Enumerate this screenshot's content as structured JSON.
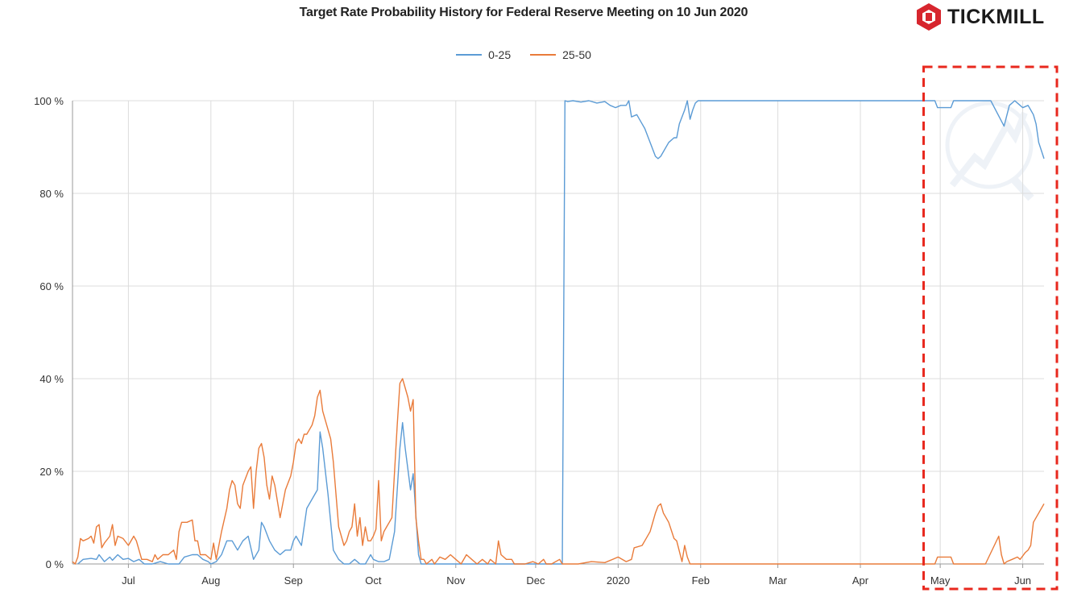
{
  "header": {
    "title": "Target Rate Probability History for Federal Reserve Meeting on 10 Jun 2020"
  },
  "brand": {
    "name": "TICKMILL",
    "logo_icon": "tickmill-hexagon-icon",
    "color": "#d7262e"
  },
  "chart_data": {
    "type": "line",
    "title": "Target Rate Probability History for Federal Reserve Meeting on 10 Jun 2020",
    "xlabel": "",
    "ylabel": "",
    "ylim": [
      0,
      100
    ],
    "xlim": [
      0,
      365
    ],
    "x_unit": "days from 2019-06-10 to 2020-06-10",
    "y_ticks": [
      0,
      20,
      40,
      60,
      80,
      100
    ],
    "y_tick_labels": [
      "0 %",
      "20 %",
      "40 %",
      "60 %",
      "80 %",
      "100 %"
    ],
    "x_ticks": [
      21,
      52,
      83,
      113,
      144,
      174,
      205,
      236,
      265,
      296,
      326,
      357
    ],
    "x_tick_labels": [
      "Jul",
      "Aug",
      "Sep",
      "Oct",
      "Nov",
      "Dec",
      "2020",
      "Feb",
      "Mar",
      "Apr",
      "May",
      "Jun"
    ],
    "grid": true,
    "legend": "top-center",
    "highlight_box": {
      "x_from": 324,
      "x_to": 365,
      "color": "#e8281e",
      "style": "dashed"
    },
    "series": [
      {
        "name": "0-25",
        "color": "#5b9bd5",
        "points": [
          [
            2,
            0
          ],
          [
            4,
            1
          ],
          [
            7,
            1.2
          ],
          [
            9,
            1
          ],
          [
            10,
            2
          ],
          [
            12,
            0.5
          ],
          [
            14,
            1.5
          ],
          [
            15,
            0.8
          ],
          [
            17,
            2
          ],
          [
            19,
            1
          ],
          [
            21,
            1.2
          ],
          [
            23,
            0.5
          ],
          [
            25,
            1
          ],
          [
            27,
            0
          ],
          [
            30,
            0
          ],
          [
            33,
            0.5
          ],
          [
            36,
            0
          ],
          [
            38,
            0
          ],
          [
            40,
            0
          ],
          [
            42,
            1.5
          ],
          [
            45,
            2
          ],
          [
            47,
            2
          ],
          [
            49,
            1
          ],
          [
            51,
            0.5
          ],
          [
            52,
            0
          ],
          [
            54,
            0.5
          ],
          [
            56,
            2
          ],
          [
            58,
            5
          ],
          [
            60,
            5
          ],
          [
            62,
            3
          ],
          [
            64,
            5
          ],
          [
            66,
            6
          ],
          [
            68,
            1
          ],
          [
            70,
            3
          ],
          [
            71,
            9
          ],
          [
            72,
            8
          ],
          [
            74,
            5
          ],
          [
            76,
            3
          ],
          [
            78,
            2
          ],
          [
            80,
            3
          ],
          [
            82,
            3
          ],
          [
            83,
            5
          ],
          [
            84,
            6
          ],
          [
            86,
            4
          ],
          [
            88,
            12
          ],
          [
            90,
            14
          ],
          [
            92,
            16
          ],
          [
            93,
            28.5
          ],
          [
            94,
            25
          ],
          [
            96,
            15
          ],
          [
            98,
            3
          ],
          [
            100,
            1
          ],
          [
            102,
            0
          ],
          [
            104,
            0
          ],
          [
            106,
            1
          ],
          [
            108,
            0
          ],
          [
            110,
            0
          ],
          [
            111,
            1
          ],
          [
            112,
            2
          ],
          [
            113,
            1
          ],
          [
            115,
            0.5
          ],
          [
            117,
            0.5
          ],
          [
            119,
            1
          ],
          [
            121,
            7
          ],
          [
            123,
            25
          ],
          [
            124,
            30.5
          ],
          [
            125,
            25
          ],
          [
            127,
            16
          ],
          [
            128,
            19.5
          ],
          [
            130,
            2
          ],
          [
            131,
            0
          ],
          [
            133,
            0
          ],
          [
            140,
            0
          ],
          [
            150,
            0
          ],
          [
            160,
            0
          ],
          [
            170,
            0
          ],
          [
            180,
            0
          ],
          [
            184,
            0
          ],
          [
            185,
            100
          ],
          [
            186,
            99.8
          ],
          [
            188,
            100
          ],
          [
            191,
            99.7
          ],
          [
            194,
            100
          ],
          [
            197,
            99.5
          ],
          [
            200,
            99.8
          ],
          [
            202,
            99
          ],
          [
            204,
            98.5
          ],
          [
            206,
            99
          ],
          [
            208,
            99
          ],
          [
            209,
            100
          ],
          [
            210,
            96.5
          ],
          [
            212,
            97
          ],
          [
            214,
            95
          ],
          [
            215,
            94
          ],
          [
            217,
            91
          ],
          [
            219,
            88
          ],
          [
            220,
            87.5
          ],
          [
            221,
            88
          ],
          [
            224,
            91
          ],
          [
            226,
            92
          ],
          [
            227,
            92
          ],
          [
            228,
            95
          ],
          [
            230,
            98
          ],
          [
            231,
            100
          ],
          [
            232,
            96
          ],
          [
            233,
            98
          ],
          [
            234,
            99.5
          ],
          [
            235,
            100
          ],
          [
            324,
            100
          ],
          [
            325,
            98.5
          ],
          [
            328,
            98.5
          ],
          [
            330,
            98.5
          ],
          [
            331,
            100
          ],
          [
            345,
            100
          ],
          [
            350,
            94.5
          ],
          [
            352,
            99
          ],
          [
            354,
            100
          ],
          [
            356,
            99
          ],
          [
            357,
            98.5
          ],
          [
            359,
            99
          ],
          [
            360,
            98
          ],
          [
            361,
            97
          ],
          [
            362,
            95
          ],
          [
            363,
            91
          ],
          [
            365,
            87.5
          ]
        ]
      },
      {
        "name": "25-50",
        "color": "#e97b3a",
        "points": [
          [
            0,
            0.5
          ],
          [
            1,
            0
          ],
          [
            2,
            1.5
          ],
          [
            3,
            5.5
          ],
          [
            4,
            5
          ],
          [
            6,
            5.5
          ],
          [
            7,
            6
          ],
          [
            8,
            4.5
          ],
          [
            9,
            8
          ],
          [
            10,
            8.5
          ],
          [
            11,
            3.5
          ],
          [
            12,
            4.5
          ],
          [
            14,
            6
          ],
          [
            15,
            8.5
          ],
          [
            16,
            4
          ],
          [
            17,
            6
          ],
          [
            19,
            5.5
          ],
          [
            21,
            4
          ],
          [
            23,
            6
          ],
          [
            24,
            5
          ],
          [
            26,
            1
          ],
          [
            28,
            1
          ],
          [
            30,
            0.5
          ],
          [
            31,
            2
          ],
          [
            32,
            1
          ],
          [
            34,
            2
          ],
          [
            36,
            2
          ],
          [
            38,
            3
          ],
          [
            39,
            1
          ],
          [
            40,
            7
          ],
          [
            41,
            9
          ],
          [
            43,
            9
          ],
          [
            45,
            9.5
          ],
          [
            46,
            5
          ],
          [
            47,
            5
          ],
          [
            48,
            2
          ],
          [
            50,
            2
          ],
          [
            52,
            1
          ],
          [
            53,
            4.5
          ],
          [
            54,
            1
          ],
          [
            56,
            7
          ],
          [
            58,
            12
          ],
          [
            59,
            16
          ],
          [
            60,
            18
          ],
          [
            61,
            17
          ],
          [
            62,
            13
          ],
          [
            63,
            12
          ],
          [
            64,
            17
          ],
          [
            66,
            20
          ],
          [
            67,
            21
          ],
          [
            68,
            12
          ],
          [
            69,
            20
          ],
          [
            70,
            25
          ],
          [
            71,
            26
          ],
          [
            72,
            23
          ],
          [
            73,
            17
          ],
          [
            74,
            14
          ],
          [
            75,
            19
          ],
          [
            76,
            17
          ],
          [
            78,
            10
          ],
          [
            80,
            16
          ],
          [
            82,
            19
          ],
          [
            83,
            22
          ],
          [
            84,
            26
          ],
          [
            85,
            27
          ],
          [
            86,
            26
          ],
          [
            87,
            28
          ],
          [
            88,
            28
          ],
          [
            89,
            29
          ],
          [
            90,
            30
          ],
          [
            91,
            32
          ],
          [
            92,
            36
          ],
          [
            93,
            37.5
          ],
          [
            94,
            33
          ],
          [
            95,
            31
          ],
          [
            97,
            27
          ],
          [
            98,
            22
          ],
          [
            99,
            15
          ],
          [
            100,
            8
          ],
          [
            101,
            6
          ],
          [
            102,
            4
          ],
          [
            103,
            5
          ],
          [
            104,
            7
          ],
          [
            105,
            8
          ],
          [
            106,
            13
          ],
          [
            107,
            6
          ],
          [
            108,
            10
          ],
          [
            109,
            4
          ],
          [
            110,
            8
          ],
          [
            111,
            5
          ],
          [
            112,
            5
          ],
          [
            113,
            6
          ],
          [
            114,
            7.5
          ],
          [
            115,
            18
          ],
          [
            116,
            5
          ],
          [
            117,
            7
          ],
          [
            118,
            8
          ],
          [
            119,
            9
          ],
          [
            120,
            10
          ],
          [
            121,
            20
          ],
          [
            122,
            30
          ],
          [
            123,
            39
          ],
          [
            124,
            40
          ],
          [
            125,
            38
          ],
          [
            126,
            36
          ],
          [
            127,
            33
          ],
          [
            128,
            35.5
          ],
          [
            129,
            10
          ],
          [
            130,
            5
          ],
          [
            131,
            1
          ],
          [
            132,
            1
          ],
          [
            133,
            0
          ],
          [
            135,
            1
          ],
          [
            136,
            0
          ],
          [
            138,
            1.5
          ],
          [
            140,
            1
          ],
          [
            142,
            2
          ],
          [
            144,
            1
          ],
          [
            146,
            0
          ],
          [
            148,
            2
          ],
          [
            150,
            1
          ],
          [
            152,
            0
          ],
          [
            154,
            1
          ],
          [
            156,
            0
          ],
          [
            157,
            1
          ],
          [
            159,
            0
          ],
          [
            160,
            5
          ],
          [
            161,
            2
          ],
          [
            163,
            1
          ],
          [
            165,
            1
          ],
          [
            166,
            0
          ],
          [
            170,
            0
          ],
          [
            173,
            0.5
          ],
          [
            175,
            0
          ],
          [
            177,
            1
          ],
          [
            178,
            0
          ],
          [
            180,
            0
          ],
          [
            183,
            1
          ],
          [
            184,
            0
          ],
          [
            185,
            0
          ],
          [
            190,
            0
          ],
          [
            195,
            0.5
          ],
          [
            200,
            0.3
          ],
          [
            205,
            1.5
          ],
          [
            208,
            0.5
          ],
          [
            210,
            1
          ],
          [
            211,
            3.5
          ],
          [
            214,
            4
          ],
          [
            215,
            5
          ],
          [
            217,
            7
          ],
          [
            219,
            11
          ],
          [
            220,
            12.5
          ],
          [
            221,
            13
          ],
          [
            222,
            11
          ],
          [
            224,
            9
          ],
          [
            226,
            5.5
          ],
          [
            227,
            5
          ],
          [
            229,
            0.5
          ],
          [
            230,
            4
          ],
          [
            231,
            1.5
          ],
          [
            232,
            0
          ],
          [
            235,
            0
          ],
          [
            324,
            0
          ],
          [
            325,
            1.5
          ],
          [
            330,
            1.5
          ],
          [
            331,
            0
          ],
          [
            343,
            0
          ],
          [
            348,
            6
          ],
          [
            349,
            2
          ],
          [
            350,
            0
          ],
          [
            351,
            0.5
          ],
          [
            353,
            1
          ],
          [
            355,
            1.5
          ],
          [
            356,
            1
          ],
          [
            358,
            2.5
          ],
          [
            359,
            3
          ],
          [
            360,
            4
          ],
          [
            361,
            9
          ],
          [
            363,
            11
          ],
          [
            365,
            13
          ]
        ]
      }
    ]
  }
}
